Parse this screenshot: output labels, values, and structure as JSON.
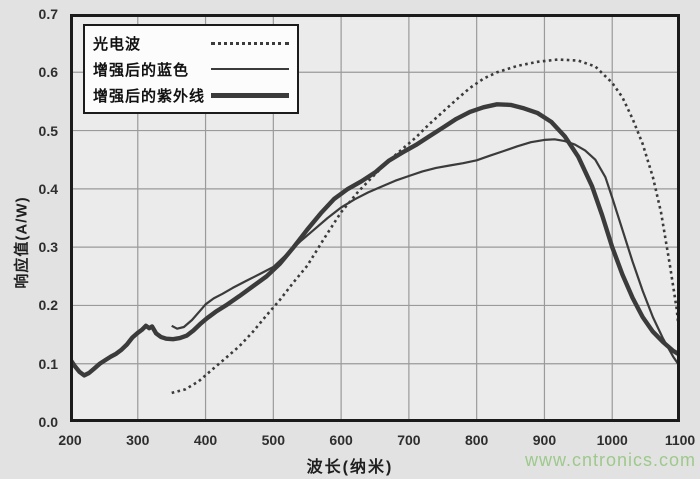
{
  "page": {
    "watermark": "www.cntronics.com",
    "background_color": "#e2e2e2",
    "watermark_color": "#92c47c"
  },
  "chart_data": {
    "type": "line",
    "title": "",
    "xlabel": "波长(纳米)",
    "ylabel": "响应值(A/W)",
    "xlim": [
      200,
      1100
    ],
    "ylim": [
      0.0,
      0.7
    ],
    "x_ticks": [
      "200",
      "300",
      "400",
      "500",
      "600",
      "700",
      "800",
      "900",
      "1000",
      "1100"
    ],
    "y_ticks": [
      "0.0",
      "0.1",
      "0.2",
      "0.3",
      "0.4",
      "0.5",
      "0.6",
      "0.7"
    ],
    "grid": true,
    "grid_color": "#9a9a9a",
    "plot_bg": "#ebebeb",
    "border_color": "#1b1b1b",
    "line_color": "#3b3b3b",
    "legend_position": "top-left",
    "series": [
      {
        "name": "光电波",
        "style": "dotted",
        "points": [
          [
            350,
            0.05
          ],
          [
            370,
            0.056
          ],
          [
            390,
            0.07
          ],
          [
            410,
            0.09
          ],
          [
            430,
            0.11
          ],
          [
            450,
            0.13
          ],
          [
            470,
            0.155
          ],
          [
            490,
            0.183
          ],
          [
            510,
            0.21
          ],
          [
            530,
            0.24
          ],
          [
            550,
            0.268
          ],
          [
            575,
            0.315
          ],
          [
            600,
            0.36
          ],
          [
            625,
            0.395
          ],
          [
            650,
            0.425
          ],
          [
            670,
            0.448
          ],
          [
            690,
            0.468
          ],
          [
            710,
            0.488
          ],
          [
            730,
            0.511
          ],
          [
            750,
            0.532
          ],
          [
            770,
            0.553
          ],
          [
            790,
            0.573
          ],
          [
            810,
            0.589
          ],
          [
            830,
            0.6
          ],
          [
            860,
            0.611
          ],
          [
            890,
            0.618
          ],
          [
            920,
            0.622
          ],
          [
            950,
            0.62
          ],
          [
            975,
            0.61
          ],
          [
            1000,
            0.582
          ],
          [
            1015,
            0.557
          ],
          [
            1030,
            0.52
          ],
          [
            1045,
            0.477
          ],
          [
            1060,
            0.42
          ],
          [
            1072,
            0.36
          ],
          [
            1085,
            0.27
          ],
          [
            1095,
            0.195
          ],
          [
            1100,
            0.14
          ]
        ]
      },
      {
        "name": "增强后的蓝色",
        "style": "thin",
        "points": [
          [
            350,
            0.165
          ],
          [
            358,
            0.16
          ],
          [
            368,
            0.163
          ],
          [
            380,
            0.175
          ],
          [
            395,
            0.195
          ],
          [
            400,
            0.202
          ],
          [
            412,
            0.212
          ],
          [
            425,
            0.22
          ],
          [
            440,
            0.23
          ],
          [
            460,
            0.242
          ],
          [
            480,
            0.254
          ],
          [
            500,
            0.266
          ],
          [
            520,
            0.288
          ],
          [
            540,
            0.31
          ],
          [
            560,
            0.33
          ],
          [
            580,
            0.35
          ],
          [
            600,
            0.368
          ],
          [
            620,
            0.382
          ],
          [
            640,
            0.394
          ],
          [
            660,
            0.404
          ],
          [
            680,
            0.414
          ],
          [
            700,
            0.422
          ],
          [
            720,
            0.43
          ],
          [
            740,
            0.436
          ],
          [
            760,
            0.44
          ],
          [
            780,
            0.444
          ],
          [
            800,
            0.449
          ],
          [
            820,
            0.457
          ],
          [
            840,
            0.465
          ],
          [
            860,
            0.473
          ],
          [
            880,
            0.48
          ],
          [
            900,
            0.484
          ],
          [
            915,
            0.485
          ],
          [
            930,
            0.482
          ],
          [
            945,
            0.476
          ],
          [
            960,
            0.466
          ],
          [
            975,
            0.45
          ],
          [
            990,
            0.42
          ],
          [
            1000,
            0.385
          ],
          [
            1015,
            0.33
          ],
          [
            1030,
            0.275
          ],
          [
            1045,
            0.225
          ],
          [
            1060,
            0.18
          ],
          [
            1075,
            0.143
          ],
          [
            1090,
            0.112
          ],
          [
            1100,
            0.095
          ]
        ]
      },
      {
        "name": "增强后的紫外线",
        "style": "thick",
        "points": [
          [
            200,
            0.108
          ],
          [
            207,
            0.096
          ],
          [
            214,
            0.086
          ],
          [
            221,
            0.08
          ],
          [
            228,
            0.084
          ],
          [
            236,
            0.092
          ],
          [
            244,
            0.1
          ],
          [
            252,
            0.106
          ],
          [
            260,
            0.112
          ],
          [
            268,
            0.117
          ],
          [
            276,
            0.124
          ],
          [
            284,
            0.133
          ],
          [
            292,
            0.145
          ],
          [
            300,
            0.153
          ],
          [
            306,
            0.158
          ],
          [
            312,
            0.165
          ],
          [
            317,
            0.161
          ],
          [
            321,
            0.164
          ],
          [
            327,
            0.152
          ],
          [
            334,
            0.146
          ],
          [
            342,
            0.143
          ],
          [
            352,
            0.142
          ],
          [
            362,
            0.144
          ],
          [
            372,
            0.148
          ],
          [
            382,
            0.157
          ],
          [
            392,
            0.168
          ],
          [
            402,
            0.178
          ],
          [
            415,
            0.189
          ],
          [
            430,
            0.2
          ],
          [
            450,
            0.216
          ],
          [
            470,
            0.233
          ],
          [
            490,
            0.25
          ],
          [
            510,
            0.272
          ],
          [
            530,
            0.3
          ],
          [
            550,
            0.33
          ],
          [
            570,
            0.358
          ],
          [
            590,
            0.383
          ],
          [
            610,
            0.4
          ],
          [
            630,
            0.413
          ],
          [
            650,
            0.428
          ],
          [
            670,
            0.448
          ],
          [
            690,
            0.462
          ],
          [
            710,
            0.475
          ],
          [
            730,
            0.49
          ],
          [
            750,
            0.505
          ],
          [
            770,
            0.52
          ],
          [
            790,
            0.532
          ],
          [
            810,
            0.54
          ],
          [
            830,
            0.545
          ],
          [
            850,
            0.544
          ],
          [
            870,
            0.538
          ],
          [
            890,
            0.53
          ],
          [
            910,
            0.515
          ],
          [
            930,
            0.49
          ],
          [
            950,
            0.455
          ],
          [
            970,
            0.405
          ],
          [
            985,
            0.355
          ],
          [
            1000,
            0.3
          ],
          [
            1015,
            0.253
          ],
          [
            1030,
            0.213
          ],
          [
            1045,
            0.18
          ],
          [
            1060,
            0.155
          ],
          [
            1075,
            0.137
          ],
          [
            1090,
            0.122
          ],
          [
            1100,
            0.115
          ]
        ]
      }
    ]
  }
}
